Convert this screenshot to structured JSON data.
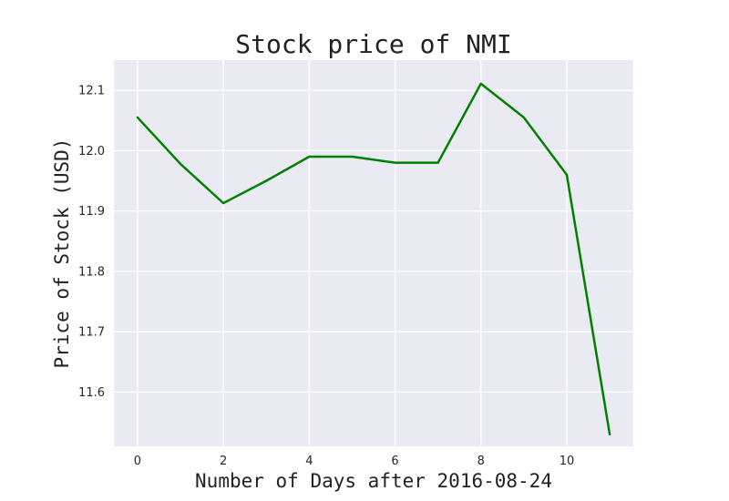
{
  "chart_data": {
    "type": "line",
    "title": "Stock price of NMI",
    "xlabel": "Number of Days after 2016-08-24",
    "ylabel": "Price of Stock (USD)",
    "x": [
      0,
      1,
      2,
      3,
      4,
      5,
      6,
      7,
      8,
      9,
      10,
      11
    ],
    "series": [
      {
        "values": [
          12.055,
          11.978,
          11.913,
          11.95,
          11.99,
          11.99,
          11.98,
          11.98,
          12.111,
          12.055,
          11.96,
          11.53
        ]
      }
    ],
    "xlim": [
      -0.55,
      11.55
    ],
    "ylim": [
      11.51,
      12.15
    ],
    "xticks": [
      0,
      2,
      4,
      6,
      8,
      10
    ],
    "xtick_labels": [
      "0",
      "2",
      "4",
      "6",
      "8",
      "10"
    ],
    "yticks": [
      11.6,
      11.7,
      11.8,
      11.9,
      12.0,
      12.1
    ],
    "ytick_labels": [
      "11.6",
      "11.7",
      "11.8",
      "11.9",
      "12.0",
      "12.1"
    ],
    "grid": true,
    "colors": {
      "line": "#008000",
      "plot_background": "#eaeaf2",
      "grid": "#ffffff"
    }
  }
}
